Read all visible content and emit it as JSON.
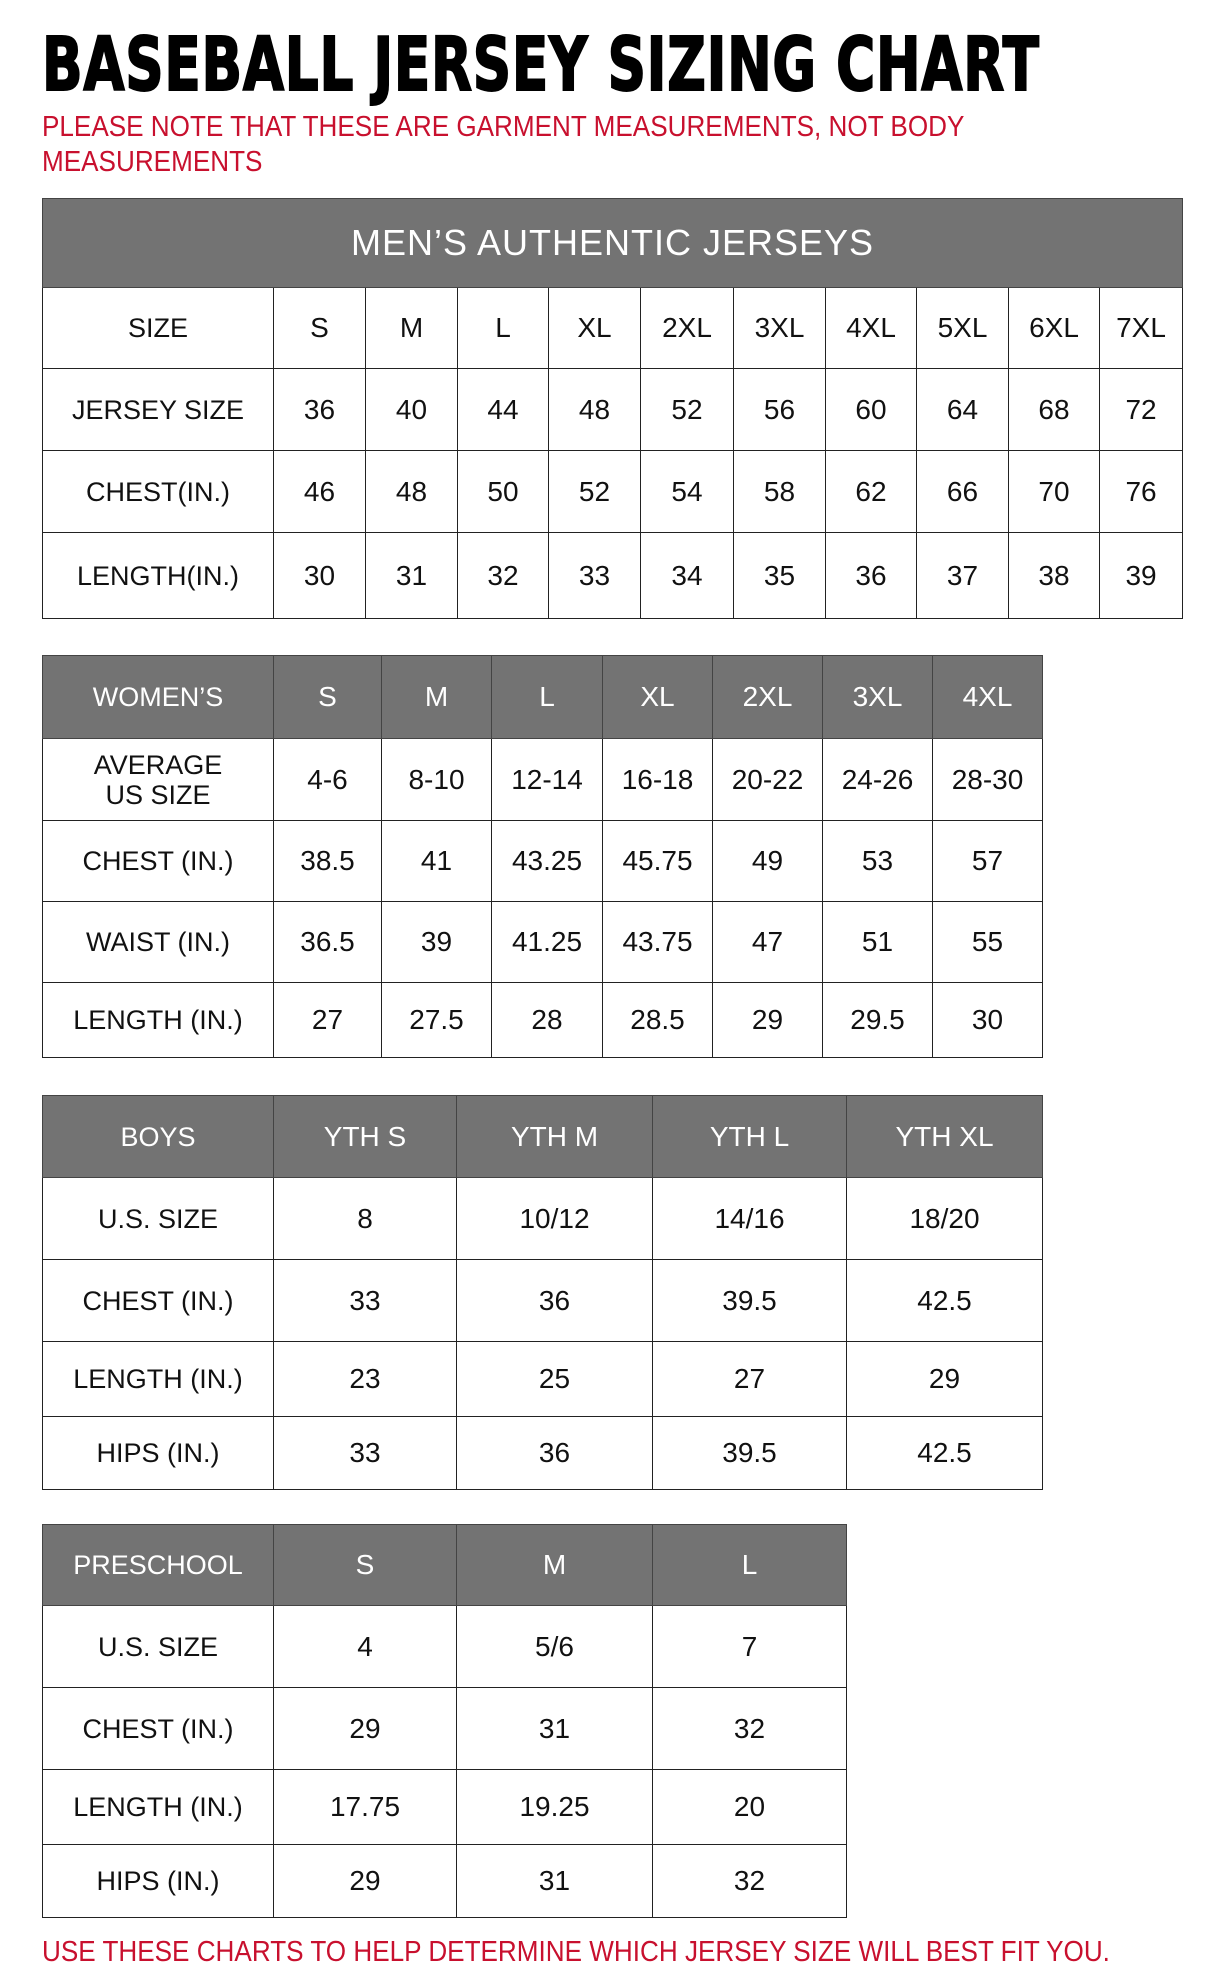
{
  "title": "BASEBALL JERSEY SIZING CHART",
  "note_top": "PLEASE NOTE THAT THESE ARE GARMENT MEASUREMENTS, NOT BODY MEASUREMENTS",
  "note_bottom": "USE THESE CHARTS TO HELP DETERMINE WHICH JERSEY SIZE WILL BEST FIT YOU.",
  "colors": {
    "header_bg": "#737373",
    "note_red": "#c8102e"
  },
  "tables": {
    "men": {
      "title": "MEN’S AUTHENTIC JERSEYS",
      "header": [
        "SIZE",
        "S",
        "M",
        "L",
        "XL",
        "2XL",
        "3XL",
        "4XL",
        "5XL",
        "6XL",
        "7XL"
      ],
      "rows": [
        [
          "JERSEY SIZE",
          "36",
          "40",
          "44",
          "48",
          "52",
          "56",
          "60",
          "64",
          "68",
          "72"
        ],
        [
          "CHEST(IN.)",
          "46",
          "48",
          "50",
          "52",
          "54",
          "58",
          "62",
          "66",
          "70",
          "76"
        ],
        [
          "LENGTH(IN.)",
          "30",
          "31",
          "32",
          "33",
          "34",
          "35",
          "36",
          "37",
          "38",
          "39"
        ]
      ]
    },
    "women": {
      "header": [
        "WOMEN’S",
        "S",
        "M",
        "L",
        "XL",
        "2XL",
        "3XL",
        "4XL"
      ],
      "rows": [
        [
          "AVERAGE US SIZE",
          "4-6",
          "8-10",
          "12-14",
          "16-18",
          "20-22",
          "24-26",
          "28-30"
        ],
        [
          "CHEST (IN.)",
          "38.5",
          "41",
          "43.25",
          "45.75",
          "49",
          "53",
          "57"
        ],
        [
          "WAIST (IN.)",
          "36.5",
          "39",
          "41.25",
          "43.75",
          "47",
          "51",
          "55"
        ],
        [
          "LENGTH (IN.)",
          "27",
          "27.5",
          "28",
          "28.5",
          "29",
          "29.5",
          "30"
        ]
      ]
    },
    "boys": {
      "header": [
        "BOYS",
        "YTH S",
        "YTH M",
        "YTH L",
        "YTH XL"
      ],
      "rows": [
        [
          "U.S. SIZE",
          "8",
          "10/12",
          "14/16",
          "18/20"
        ],
        [
          "CHEST (IN.)",
          "33",
          "36",
          "39.5",
          "42.5"
        ],
        [
          "LENGTH (IN.)",
          "23",
          "25",
          "27",
          "29"
        ],
        [
          "HIPS (IN.)",
          "33",
          "36",
          "39.5",
          "42.5"
        ]
      ]
    },
    "preschool": {
      "header": [
        "PRESCHOOL",
        "S",
        "M",
        "L"
      ],
      "rows": [
        [
          "U.S. SIZE",
          "4",
          "5/6",
          "7"
        ],
        [
          "CHEST (IN.)",
          "29",
          "31",
          "32"
        ],
        [
          "LENGTH (IN.)",
          "17.75",
          "19.25",
          "20"
        ],
        [
          "HIPS (IN.)",
          "29",
          "31",
          "32"
        ]
      ]
    }
  }
}
